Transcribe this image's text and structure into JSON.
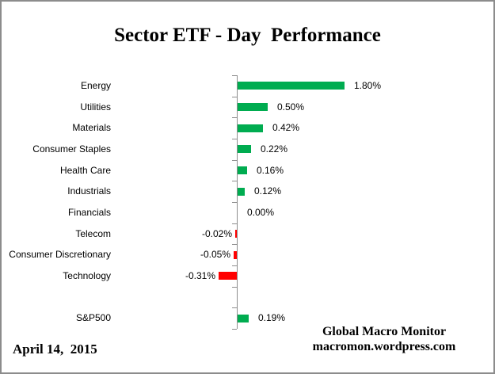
{
  "title": "Sector ETF - Day  Performance",
  "chart_data": {
    "type": "bar",
    "orientation": "horizontal",
    "title": "Sector ETF - Day  Performance",
    "categories": [
      "Energy",
      "Utilities",
      "Materials",
      "Consumer Staples",
      "Health Care",
      "Industrials",
      "Financials",
      "Telecom",
      "Consumer Discretionary",
      "Technology",
      "",
      "S&P500"
    ],
    "values": [
      1.8,
      0.5,
      0.42,
      0.22,
      0.16,
      0.12,
      0.0,
      -0.02,
      -0.05,
      -0.31,
      null,
      0.19
    ],
    "value_labels": [
      "1.80%",
      "0.50%",
      "0.42%",
      "0.22%",
      "0.16%",
      "0.12%",
      "0.00%",
      "-0.02%",
      "-0.05%",
      "-0.31%",
      "",
      "0.19%"
    ],
    "unit": "%",
    "positive_color": "#00ac50",
    "negative_color": "#ff0000",
    "axis_color": "#8e8e8e",
    "grid": "off",
    "legend": "none",
    "value_axis_labels_visible": false
  },
  "footer": {
    "date": "April 14,  2015",
    "attribution_line1": "Global Macro Monitor",
    "attribution_line2": "macromon.wordpress.com"
  }
}
